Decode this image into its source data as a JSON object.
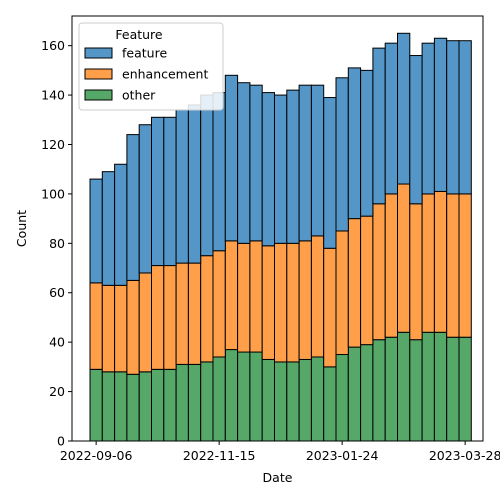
{
  "chart_data": {
    "type": "bar",
    "stacked": true,
    "xlabel": "Date",
    "ylabel": "Count",
    "ylim": [
      0,
      172
    ],
    "grid": false,
    "legend": {
      "title": "Feature",
      "placement": "top-left",
      "entries": [
        "feature",
        "enhancement",
        "other"
      ]
    },
    "x_tick_labels": [
      "2022-09-06",
      "2022-11-15",
      "2023-01-24",
      "2023-03-28"
    ],
    "x_tick_bin_index": [
      0,
      10,
      20,
      30
    ],
    "y_ticks": [
      0,
      20,
      40,
      60,
      80,
      100,
      120,
      140,
      160
    ],
    "bin_count": 31,
    "series": [
      {
        "name": "other",
        "color": "#55a868",
        "values": [
          29,
          28,
          28,
          27,
          28,
          29,
          29,
          31,
          31,
          32,
          34,
          37,
          36,
          36,
          33,
          32,
          32,
          33,
          34,
          30,
          35,
          38,
          39,
          41,
          42,
          44,
          41,
          44,
          44,
          42,
          42
        ]
      },
      {
        "name": "enhancement",
        "color": "#ff9f4a",
        "values": [
          35,
          35,
          35,
          38,
          40,
          42,
          42,
          41,
          41,
          43,
          43,
          44,
          44,
          45,
          46,
          48,
          48,
          48,
          49,
          48,
          50,
          52,
          52,
          55,
          58,
          60,
          55,
          56,
          57,
          58,
          58
        ]
      },
      {
        "name": "feature",
        "color": "#5496c7",
        "values": [
          42,
          46,
          49,
          59,
          60,
          60,
          60,
          62,
          64,
          65,
          64,
          67,
          65,
          63,
          62,
          60,
          62,
          63,
          61,
          61,
          62,
          61,
          59,
          63,
          61,
          61,
          60,
          61,
          62,
          62,
          62
        ]
      }
    ]
  }
}
